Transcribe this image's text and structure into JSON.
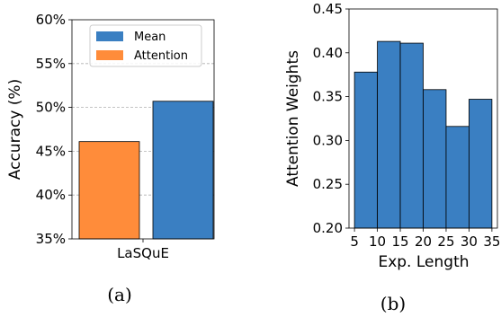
{
  "chart_data": [
    {
      "type": "bar",
      "ylabel": "Accuracy (%)",
      "ylim": [
        35,
        60
      ],
      "yticks": [
        "35%",
        "40%",
        "45%",
        "50%",
        "55%",
        "60%"
      ],
      "grid": "horizontal dashed",
      "legend_placement": "top-center",
      "categories": [
        "LaSQuE"
      ],
      "series": [
        {
          "name": "Attention",
          "values": [
            46.1
          ],
          "color": "#ff8c3a"
        },
        {
          "name": "Mean",
          "values": [
            50.7
          ],
          "color": "#3a7fc2"
        }
      ],
      "legend": [
        "Mean",
        "Attention"
      ],
      "caption": "(a)"
    },
    {
      "type": "bar",
      "xlabel": "Exp. Length",
      "ylabel": "Attention Weights",
      "ylim": [
        0.2,
        0.45
      ],
      "yticks": [
        "0.20",
        "0.25",
        "0.30",
        "0.35",
        "0.40",
        "0.45"
      ],
      "xticks": [
        "5",
        "10",
        "15",
        "20",
        "25",
        "30",
        "35"
      ],
      "color": "#3a7fc2",
      "bins": [
        [
          5,
          10
        ],
        [
          10,
          15
        ],
        [
          15,
          20
        ],
        [
          20,
          25
        ],
        [
          25,
          30
        ],
        [
          30,
          35
        ]
      ],
      "values": [
        0.378,
        0.413,
        0.411,
        0.358,
        0.316,
        0.347
      ],
      "caption": "(b)"
    }
  ]
}
